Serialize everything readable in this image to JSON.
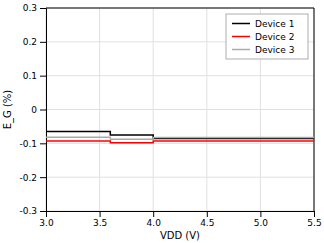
{
  "chart_data": {
    "type": "line",
    "title": "",
    "xlabel": "VDD (V)",
    "ylabel": "E_G (%)",
    "x": [
      3.0,
      3.6,
      3.6,
      4.0,
      4.0,
      5.5
    ],
    "series": [
      {
        "name": "Device 1",
        "color": "#000000",
        "values": [
          -0.065,
          -0.065,
          -0.075,
          -0.075,
          -0.086,
          -0.086
        ]
      },
      {
        "name": "Device 2",
        "color": "#ff0000",
        "values": [
          -0.093,
          -0.093,
          -0.098,
          -0.098,
          -0.093,
          -0.093
        ]
      },
      {
        "name": "Device 3",
        "color": "#aaaaaa",
        "values": [
          -0.082,
          -0.082,
          -0.088,
          -0.088,
          -0.083,
          -0.083
        ]
      }
    ],
    "xlim": [
      3,
      5.5
    ],
    "ylim": [
      -0.3,
      0.3
    ],
    "xticks": [
      {
        "value": 3,
        "label": "3.0"
      },
      {
        "value": 3.5,
        "label": "3.5"
      },
      {
        "value": 4,
        "label": "4.0"
      },
      {
        "value": 4.5,
        "label": "4.5"
      },
      {
        "value": 5,
        "label": "5.0"
      },
      {
        "value": 5.5,
        "label": "5.5"
      }
    ],
    "yticks": [
      -0.3,
      -0.2,
      -0.1,
      0,
      0.1,
      0.2,
      0.3
    ],
    "grid": true,
    "legend": "upper right"
  }
}
